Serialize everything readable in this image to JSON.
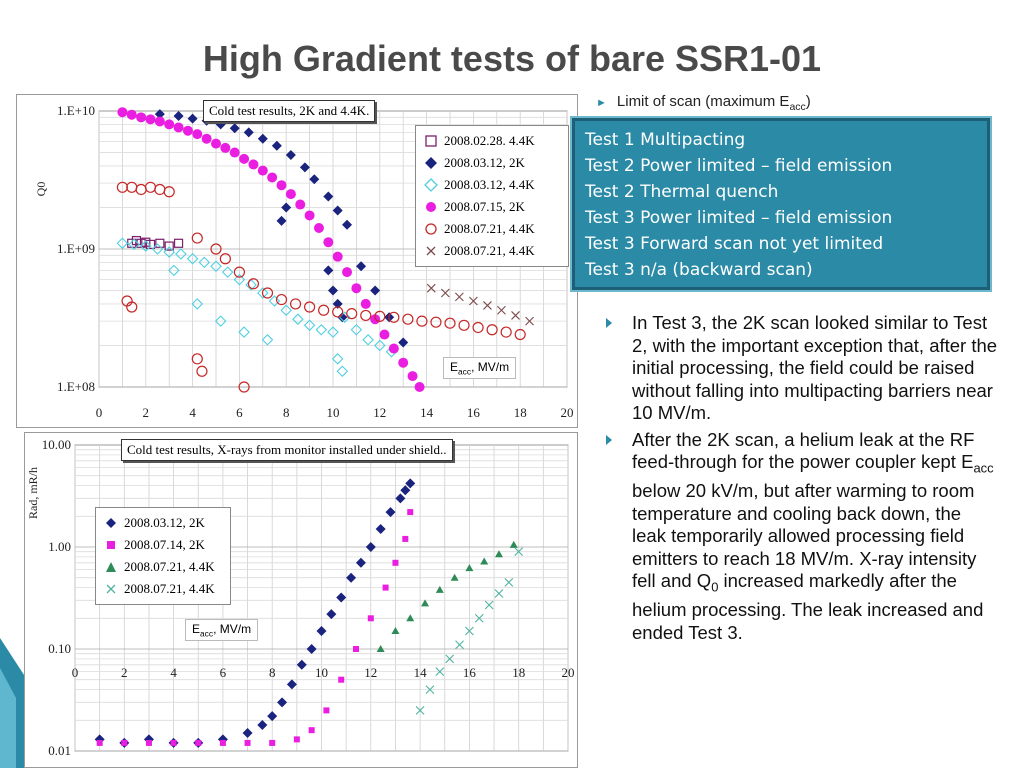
{
  "slide": {
    "title": "High Gradient tests of bare SSR1-01",
    "top_bullet": "Limit of scan (maximum E",
    "top_bullet_sub": "acc",
    "top_bullet_end": ")",
    "limits": [
      "Test 1 Multipacting",
      "Test 2 Power limited – field emission",
      "Test 2 Thermal quench",
      "Test 3 Power limited – field emission",
      "Test 3 Forward scan not yet limited",
      "Test 3 n/a (backward scan)"
    ],
    "bullet1": "In Test 3, the 2K scan looked similar to Test 2, with the important exception that, after the initial processing, the field could be raised without falling into multipacting barriers near 10 MV/m.",
    "bullet2_a": "After the 2K scan, a helium leak at the RF feed-through for the power coupler kept E",
    "bullet2_sub": "acc",
    "bullet2_b": " below 20 kV/m, but after warming to room temperature and cooling back down,  the leak temporarily allowed processing field emitters to reach 18 MV/m. X-ray intensity fell and Q",
    "bullet2_sub2": "0",
    "bullet2_c": " increased markedly after the helium processing.   The leak increased and ended Test 3."
  },
  "colors": {
    "accent": "#2b8aa6",
    "title": "#4a4a4a"
  },
  "chart_data": [
    {
      "type": "scatter",
      "title": "Cold test results, 2K and 4.4K.",
      "ylabel": "Q0",
      "xlabel_main": "E",
      "xlabel_sub": "acc",
      "xlabel_rest": ", MV/m",
      "xlim": [
        0,
        20
      ],
      "ylim": [
        100000000,
        10000000000
      ],
      "yscale": "log",
      "xticks": [
        "0",
        "2",
        "4",
        "6",
        "8",
        "10",
        "12",
        "14",
        "16",
        "18",
        "20"
      ],
      "yticks": [
        "1.E+08",
        "1.E+09",
        "1.E+10"
      ],
      "legend_position": "right",
      "grid": true,
      "series": [
        {
          "name": "2008.02.28. 4.4K",
          "marker": "square-open",
          "color": "#7a1f6b",
          "x": [
            1.4,
            1.6,
            1.8,
            2.0,
            2.2,
            2.6,
            3.0,
            3.4
          ],
          "y": [
            1100000000.0,
            1150000000.0,
            1100000000.0,
            1120000000.0,
            1080000000.0,
            1100000000.0,
            1050000000.0,
            1100000000.0
          ]
        },
        {
          "name": "2008.03.12, 2K",
          "marker": "diamond",
          "color": "#1a237e",
          "x": [
            2.6,
            3.4,
            4.0,
            4.6,
            5.2,
            5.8,
            6.4,
            7.0,
            7.6,
            8.2,
            8.8,
            9.2,
            9.8,
            10.2,
            10.6,
            11.2,
            11.8,
            12.4,
            13.0,
            7.8,
            8.0,
            9.8,
            10.0,
            10.2,
            10.4
          ],
          "y": [
            9500000000.0,
            9200000000.0,
            8800000000.0,
            8500000000.0,
            8000000000.0,
            7500000000.0,
            7000000000.0,
            6300000000.0,
            5600000000.0,
            4800000000.0,
            3900000000.0,
            3200000000.0,
            2400000000.0,
            1900000000.0,
            1500000000.0,
            750000000.0,
            500000000.0,
            320000000.0,
            210000000.0,
            1600000000.0,
            2000000000.0,
            700000000.0,
            500000000.0,
            400000000.0,
            320000000.0
          ]
        },
        {
          "name": "2008.03.12, 4.4K",
          "marker": "diamond-open",
          "color": "#4dd0e1",
          "x": [
            1.0,
            1.5,
            2.0,
            2.5,
            3.0,
            3.5,
            4.0,
            4.5,
            5.0,
            5.5,
            6.0,
            6.5,
            7.0,
            7.5,
            8.0,
            8.5,
            9.0,
            9.5,
            10.0,
            10.5,
            11.0,
            11.5,
            12.0,
            12.5,
            3.2,
            4.2,
            5.2,
            6.2,
            7.2,
            10.2,
            10.4
          ],
          "y": [
            1100000000.0,
            1080000000.0,
            1050000000.0,
            1000000000.0,
            950000000.0,
            920000000.0,
            850000000.0,
            800000000.0,
            750000000.0,
            680000000.0,
            600000000.0,
            550000000.0,
            480000000.0,
            420000000.0,
            360000000.0,
            310000000.0,
            280000000.0,
            260000000.0,
            250000000.0,
            320000000.0,
            260000000.0,
            220000000.0,
            200000000.0,
            180000000.0,
            700000000.0,
            400000000.0,
            300000000.0,
            250000000.0,
            220000000.0,
            160000000.0,
            130000000.0
          ]
        },
        {
          "name": "2008.07.15, 2K",
          "marker": "circle",
          "color": "#e91ee0",
          "x": [
            1.0,
            1.4,
            1.8,
            2.2,
            2.6,
            3.0,
            3.4,
            3.8,
            4.2,
            4.6,
            5.0,
            5.4,
            5.8,
            6.2,
            6.6,
            7.0,
            7.4,
            7.8,
            8.2,
            8.6,
            9.0,
            9.4,
            9.8,
            10.2,
            10.6,
            11.0,
            11.4,
            11.8,
            12.2,
            12.6,
            13.0,
            13.4,
            13.7
          ],
          "y": [
            9800000000.0,
            9400000000.0,
            9000000000.0,
            8700000000.0,
            8400000000.0,
            8000000000.0,
            7600000000.0,
            7200000000.0,
            6800000000.0,
            6300000000.0,
            5800000000.0,
            5400000000.0,
            5000000000.0,
            4500000000.0,
            4100000000.0,
            3700000000.0,
            3300000000.0,
            2900000000.0,
            2500000000.0,
            2100000000.0,
            1750000000.0,
            1420000000.0,
            1120000000.0,
            880000000.0,
            680000000.0,
            520000000.0,
            400000000.0,
            310000000.0,
            240000000.0,
            190000000.0,
            150000000.0,
            120000000.0,
            100000000.0
          ]
        },
        {
          "name": "2008.07.21, 4.4K",
          "marker": "circle-open",
          "color": "#c62828",
          "x": [
            1.0,
            1.4,
            1.8,
            2.2,
            2.6,
            3.0,
            4.2,
            5.0,
            5.4,
            6.0,
            6.6,
            7.2,
            7.8,
            8.4,
            9.0,
            9.6,
            10.2,
            10.8,
            11.4,
            12.0,
            12.6,
            13.2,
            13.8,
            14.4,
            15.0,
            15.6,
            16.2,
            16.8,
            17.4,
            18.0,
            1.2,
            1.4,
            4.2,
            4.4,
            6.2
          ],
          "y": [
            2800000000.0,
            2800000000.0,
            2700000000.0,
            2800000000.0,
            2700000000.0,
            2600000000.0,
            1200000000.0,
            1000000000.0,
            850000000.0,
            680000000.0,
            560000000.0,
            480000000.0,
            430000000.0,
            400000000.0,
            380000000.0,
            360000000.0,
            350000000.0,
            340000000.0,
            330000000.0,
            325000000.0,
            320000000.0,
            310000000.0,
            300000000.0,
            295000000.0,
            290000000.0,
            280000000.0,
            270000000.0,
            260000000.0,
            250000000.0,
            240000000.0,
            420000000.0,
            380000000.0,
            160000000.0,
            130000000.0,
            100000000.0
          ]
        },
        {
          "name": "2008.07.21, 4.4K",
          "marker": "x",
          "color": "#7a4a4a",
          "x": [
            14.2,
            14.8,
            15.4,
            16.0,
            16.6,
            17.2,
            17.8,
            18.4
          ],
          "y": [
            520000000.0,
            480000000.0,
            450000000.0,
            420000000.0,
            390000000.0,
            360000000.0,
            330000000.0,
            300000000.0
          ]
        }
      ]
    },
    {
      "type": "scatter",
      "title": "Cold test results, X-rays from monitor installed under shield..",
      "ylabel": "Rad, mR/h",
      "xlabel_main": "E",
      "xlabel_sub": "acc",
      "xlabel_rest": ", MV/m",
      "xlim": [
        0,
        20
      ],
      "ylim": [
        0.01,
        10
      ],
      "yscale": "log",
      "xticks": [
        "0",
        "2",
        "4",
        "6",
        "8",
        "10",
        "12",
        "14",
        "16",
        "18",
        "20"
      ],
      "yticks": [
        "0.01",
        "0.10",
        "1.00",
        "10.00"
      ],
      "legend_position": "left",
      "grid": true,
      "series": [
        {
          "name": "2008.03.12, 2K",
          "marker": "diamond",
          "color": "#1a237e",
          "x": [
            1.0,
            2.0,
            3.0,
            4.0,
            5.0,
            6.0,
            7.0,
            7.6,
            8.0,
            8.4,
            8.8,
            9.2,
            9.6,
            10.0,
            10.4,
            10.8,
            11.2,
            11.6,
            12.0,
            12.4,
            12.8,
            13.2,
            13.4,
            13.6
          ],
          "y": [
            0.013,
            0.012,
            0.013,
            0.012,
            0.012,
            0.013,
            0.015,
            0.018,
            0.022,
            0.03,
            0.045,
            0.07,
            0.1,
            0.15,
            0.22,
            0.32,
            0.5,
            0.7,
            1.0,
            1.5,
            2.2,
            3.0,
            3.6,
            4.2
          ]
        },
        {
          "name": "2008.07.14, 2K",
          "marker": "square",
          "color": "#e91ee0",
          "x": [
            1.0,
            2.0,
            3.0,
            4.0,
            5.0,
            6.0,
            7.0,
            8.0,
            9.0,
            9.6,
            10.2,
            10.8,
            11.4,
            12.0,
            12.6,
            13.0,
            13.4,
            13.6
          ],
          "y": [
            0.012,
            0.012,
            0.012,
            0.012,
            0.012,
            0.012,
            0.012,
            0.012,
            0.013,
            0.016,
            0.025,
            0.05,
            0.1,
            0.2,
            0.4,
            0.7,
            1.2,
            2.2
          ]
        },
        {
          "name": "2008.07.21, 4.4K",
          "marker": "triangle",
          "color": "#2e8b57",
          "x": [
            12.4,
            13.0,
            13.6,
            14.2,
            14.8,
            15.4,
            16.0,
            16.6,
            17.2,
            17.8
          ],
          "y": [
            0.1,
            0.15,
            0.2,
            0.28,
            0.38,
            0.5,
            0.62,
            0.72,
            0.85,
            1.05
          ]
        },
        {
          "name": "2008.07.21, 4.4K",
          "marker": "x",
          "color": "#4fb3a0",
          "x": [
            14.0,
            14.4,
            14.8,
            15.2,
            15.6,
            16.0,
            16.4,
            16.8,
            17.2,
            17.6,
            18.0
          ],
          "y": [
            0.025,
            0.04,
            0.06,
            0.08,
            0.11,
            0.15,
            0.2,
            0.27,
            0.35,
            0.45,
            0.9
          ]
        }
      ]
    }
  ]
}
